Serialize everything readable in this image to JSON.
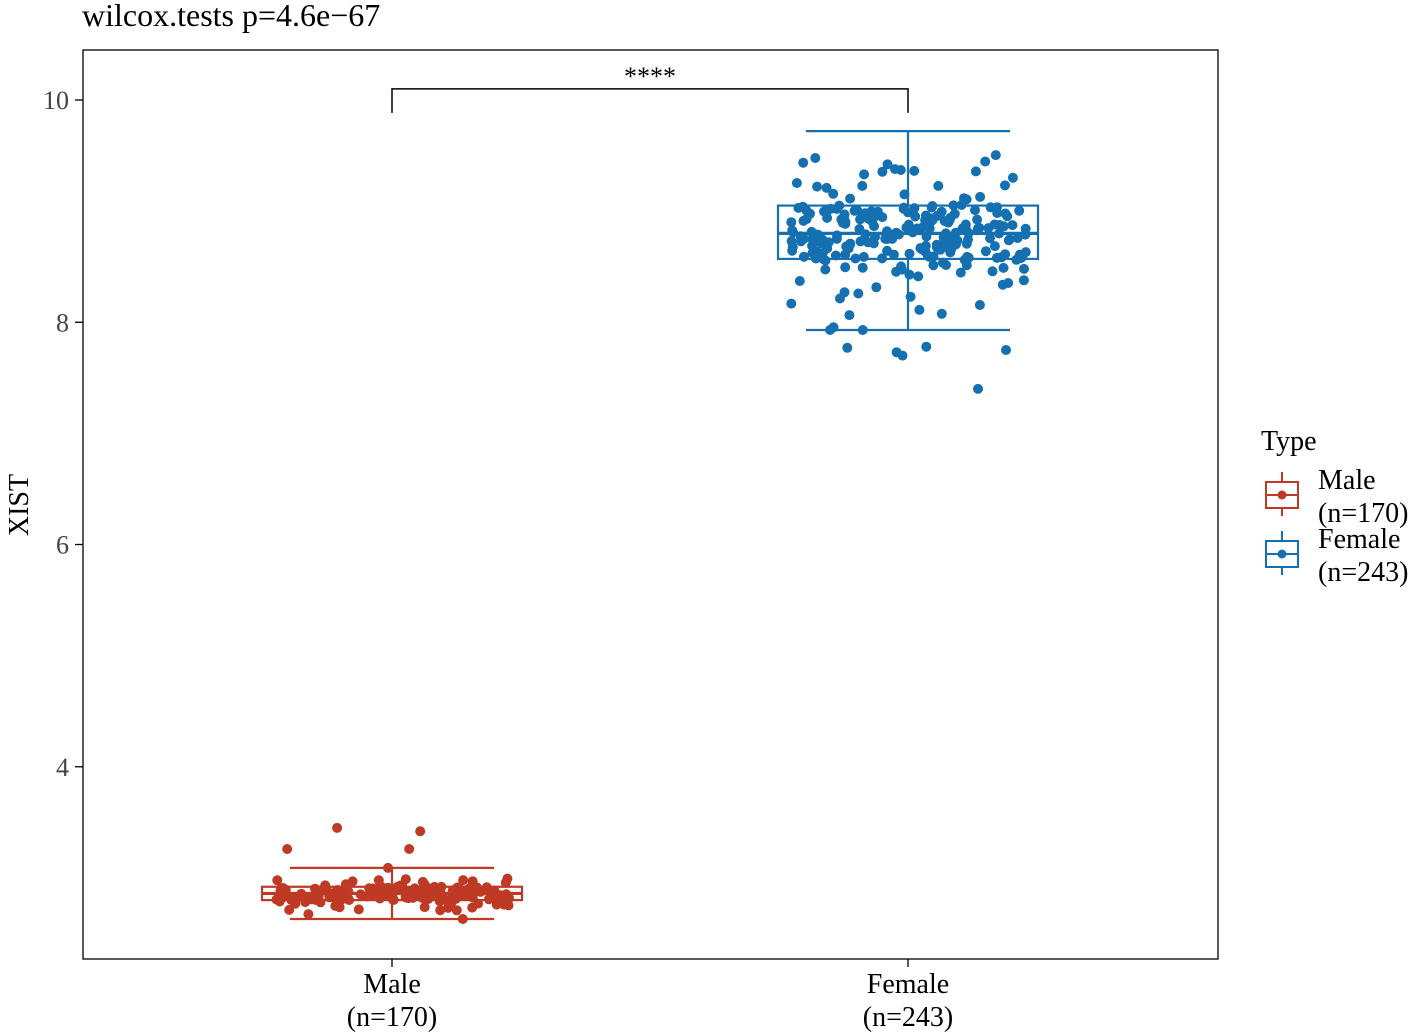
{
  "chart_data": {
    "type": "boxplot",
    "title": "wilcox.tests p=4.6e−67",
    "ylabel": "XIST",
    "xlabel": "",
    "ylim": [
      2.27,
      10.45
    ],
    "yticks": [
      4,
      6,
      8,
      10
    ],
    "categories": [
      {
        "label_line1": "Male",
        "label_line2": "(n=170)"
      },
      {
        "label_line1": "Female",
        "label_line2": "(n=243)"
      }
    ],
    "series": [
      {
        "name_line1": "Male",
        "name_line2": "(n=170)",
        "color": "#BE3A24",
        "n": 170,
        "box": {
          "whisker_low": 2.63,
          "q1": 2.8,
          "median": 2.86,
          "q3": 2.92,
          "whisker_high": 3.09
        },
        "points_range": [
          2.62,
          3.45
        ],
        "outliers_high": [
          3.45,
          3.42,
          3.26,
          3.26
        ]
      },
      {
        "name_line1": "Female",
        "name_line2": "(n=243)",
        "color": "#1470B0",
        "n": 243,
        "box": {
          "whisker_low": 7.93,
          "q1": 8.57,
          "median": 8.8,
          "q3": 9.05,
          "whisker_high": 9.72
        },
        "points_range": [
          7.4,
          9.73
        ],
        "outliers_low": [
          7.4,
          7.7,
          7.73,
          7.75,
          7.77,
          7.78
        ]
      }
    ],
    "significance": {
      "label": "****",
      "from": 0,
      "to": 1,
      "y": 10.1
    },
    "legend": {
      "title": "Type",
      "placement": "right"
    },
    "grid": false
  }
}
